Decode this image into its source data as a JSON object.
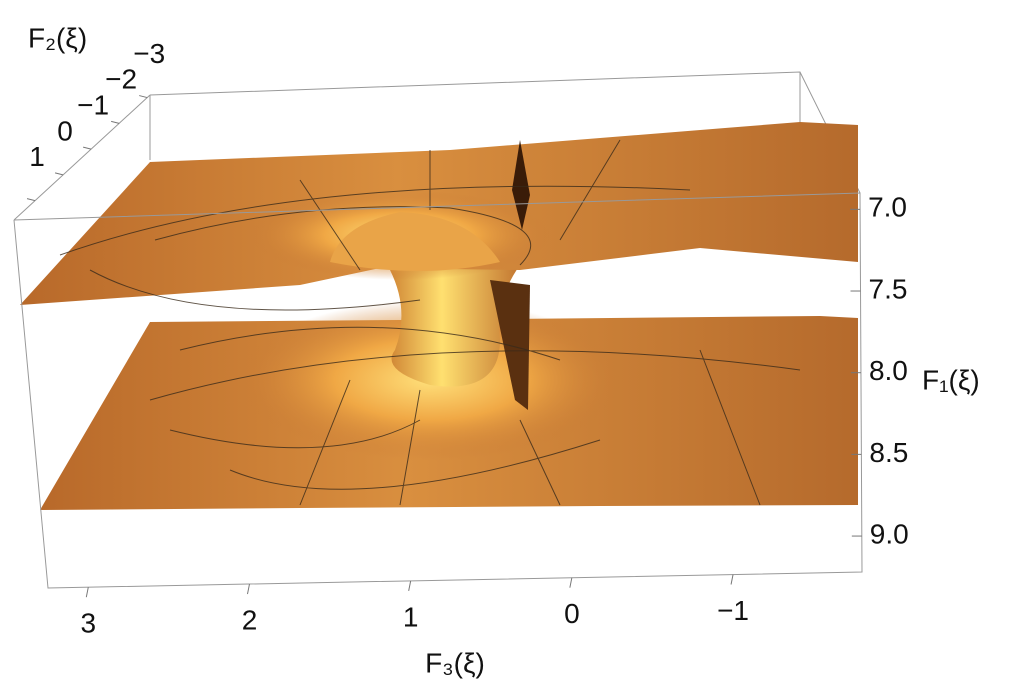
{
  "chart_data": {
    "type": "surface3d",
    "x_label": "F₃(ξ)",
    "y_label": "F₂(ξ)",
    "z_label": "F₁(ξ)",
    "xlim": [
      3.25,
      -1.8
    ],
    "xticks": [
      3,
      2,
      1,
      0,
      {
        "value": -1,
        "label": "−1"
      }
    ],
    "ylim": [
      1.75,
      -3.1
    ],
    "yticks": [
      1,
      0,
      {
        "value": -1,
        "label": "−1"
      },
      {
        "value": -2,
        "label": "−2"
      },
      {
        "value": -3,
        "label": "−3"
      }
    ],
    "zlim": [
      6.9,
      9.22
    ],
    "zticks": [
      {
        "value": 7,
        "label": "7.0"
      },
      7.5,
      {
        "value": 8,
        "label": "8.0"
      },
      8.5,
      {
        "value": 9,
        "label": "9.0"
      }
    ],
    "color": "#c87a35"
  }
}
